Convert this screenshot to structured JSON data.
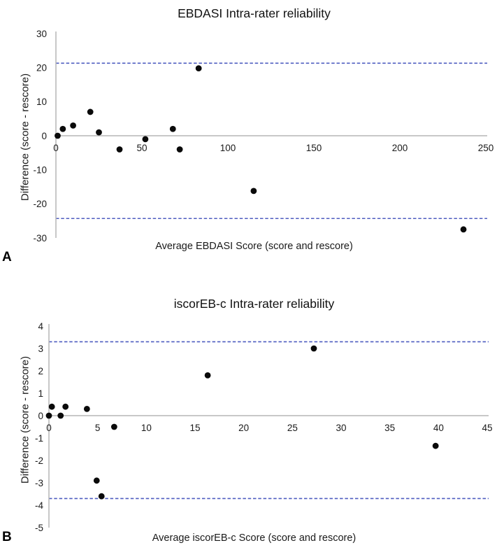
{
  "figure": {
    "background": "#ffffff",
    "colors": {
      "point": "#0a0a0a",
      "limit_line": "#4e5cc0",
      "zero_line": "#b5b5b5",
      "axis_line": "#b5b5b5",
      "text": "#1a1a1a"
    }
  },
  "chart_data": [
    {
      "type": "scatter",
      "panel_label": "A",
      "title": "EBDASI Intra-rater reliability",
      "xlabel": "Average EBDASI Score (score and rescore)",
      "ylabel": "Difference (score - rescore)",
      "xlim": [
        0,
        250
      ],
      "ylim": [
        -30,
        30
      ],
      "xticks": [
        0,
        50,
        100,
        150,
        200,
        250
      ],
      "yticks": [
        30,
        20,
        10,
        0,
        -10,
        -20,
        -30
      ],
      "zero_line": 0,
      "upper_limit": 21.3,
      "lower_limit": -24.3,
      "grid": false,
      "legend": null,
      "points": [
        [
          1,
          0
        ],
        [
          4,
          2
        ],
        [
          10,
          3
        ],
        [
          20,
          7
        ],
        [
          25,
          1
        ],
        [
          37,
          -4
        ],
        [
          52,
          -1
        ],
        [
          68,
          2
        ],
        [
          72,
          -4
        ],
        [
          83,
          19.8
        ],
        [
          115,
          -16.2
        ],
        [
          237,
          -27.5
        ]
      ]
    },
    {
      "type": "scatter",
      "panel_label": "B",
      "title": "iscorEB-c Intra-rater reliability",
      "xlabel": "Average iscorEB-c Score (score and rescore)",
      "ylabel": "Difference (score - rescore)",
      "xlim": [
        0,
        45
      ],
      "ylim": [
        -5,
        4
      ],
      "xticks": [
        0,
        5,
        10,
        15,
        20,
        25,
        30,
        35,
        40,
        45
      ],
      "yticks": [
        4,
        3,
        2,
        1,
        0,
        -1,
        -2,
        -3,
        -4,
        -5
      ],
      "zero_line": 0,
      "upper_limit": 3.3,
      "lower_limit": -3.7,
      "grid": false,
      "legend": null,
      "points": [
        [
          0.3,
          0.4
        ],
        [
          0,
          0
        ],
        [
          1.2,
          0
        ],
        [
          1.7,
          0.4
        ],
        [
          3.9,
          0.3
        ],
        [
          6.7,
          -0.5
        ],
        [
          4.9,
          -2.9
        ],
        [
          5.4,
          -3.6
        ],
        [
          16.3,
          1.8
        ],
        [
          27.2,
          3
        ],
        [
          39.7,
          -1.35
        ]
      ]
    }
  ]
}
